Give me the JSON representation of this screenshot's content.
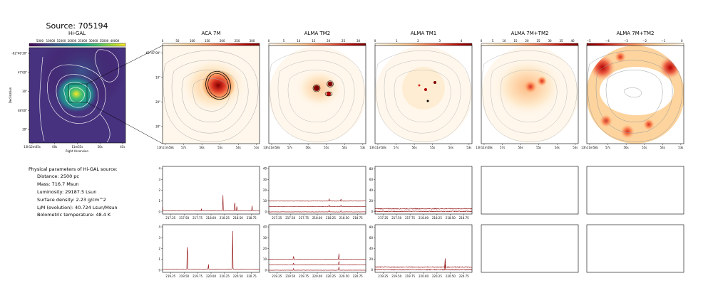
{
  "source_title": "Source: 705194",
  "params": {
    "heading": "Physical parameters of Hi-GAL source:",
    "lines": [
      "Distance: 2500 pc",
      "Mass: 716.7 Msun",
      "Luminosity: 29187.5 Lsun",
      "Surface density: 2.23 g/cm^2",
      "L/M (evolution): 40.724 Lsun/Msun",
      "Bolometric temperature: 48.4 K"
    ]
  },
  "colors": {
    "viridis": [
      "#440154",
      "#46327e",
      "#365c8d",
      "#277f8e",
      "#1fa187",
      "#4ac16d",
      "#a0da39",
      "#fde725"
    ],
    "orrd": [
      "#fff7ec",
      "#fee8c8",
      "#fdd49e",
      "#fdbb84",
      "#fc8d59",
      "#ef6548",
      "#d7301f",
      "#b30000",
      "#7f0000"
    ],
    "spectrum": "#8b0000"
  },
  "chart_data": [
    {
      "id": "higal",
      "type": "heatmap",
      "title": "Hi-GAL",
      "ylabel": "Declination",
      "xlabel": "Right Ascension",
      "colorbar_ticks": [
        "5000",
        "10000",
        "15000",
        "20000",
        "25000",
        "30000",
        "35000",
        "40000"
      ],
      "x_ticks": [
        "13h12m05s",
        "00s",
        "11m55s",
        "50s",
        "45s"
      ],
      "y_ticks": [
        "-62°46'30\"",
        "47'00\"",
        "30\"",
        "48'00\"",
        "30\""
      ]
    },
    {
      "id": "aca7m",
      "type": "heatmap",
      "title": "ACA 7M",
      "colorbar_ticks": [
        "0",
        "50",
        "100",
        "150",
        "200",
        "250",
        "300"
      ],
      "x_ticks": [
        "13h11m58s",
        "57s",
        "56s",
        "55s",
        "54s",
        "53s"
      ],
      "y_ticks": [
        "-62°47'00\"",
        "10\"",
        "20\"",
        "30\""
      ]
    },
    {
      "id": "tm2",
      "type": "heatmap",
      "title": "ALMA TM2",
      "colorbar_ticks": [
        "0",
        "5",
        "10",
        "15",
        "20",
        "25",
        "30"
      ],
      "x_ticks": [
        "13h11m58s",
        "57s",
        "56s",
        "55s",
        "54s",
        "53s"
      ]
    },
    {
      "id": "tm1",
      "type": "heatmap",
      "title": "ALMA TM1",
      "colorbar_ticks": [
        "0",
        "1",
        "2",
        "3",
        "4"
      ],
      "x_ticks": [
        "13h11m58s",
        "57s",
        "56s",
        "55s",
        "54s",
        "53s"
      ]
    },
    {
      "id": "7mtm2",
      "type": "heatmap",
      "title": "ALMA 7M+TM2",
      "colorbar_ticks": [
        "0",
        "5",
        "10",
        "15",
        "20",
        "25",
        "30",
        "35",
        "40"
      ],
      "x_ticks": [
        "13h11m58s",
        "57s",
        "56s",
        "55s",
        "54s",
        "53s"
      ]
    },
    {
      "id": "7mtm2b",
      "type": "heatmap",
      "title": "ALMA 7M+TM2",
      "colorbar_ticks": [
        "−5",
        "−4",
        "−3",
        "−2",
        "−1",
        "0"
      ],
      "x_ticks": [
        "13h11m58s",
        "57s",
        "56s",
        "55s",
        "54s",
        "53s"
      ]
    },
    {
      "id": "spec_aca_lo",
      "type": "line",
      "xlim": [
        217.1,
        218.9
      ],
      "ylim": [
        -0.2,
        4.2
      ],
      "x_ticks": [
        217.25,
        217.5,
        217.75,
        218.0,
        218.25,
        218.5,
        218.75
      ],
      "y_ticks": [
        0,
        1,
        2,
        3,
        4
      ],
      "baselines": [
        0.1
      ],
      "peaks": [
        [
          217.1,
          0.35
        ],
        [
          217.82,
          0.2
        ],
        [
          218.22,
          1.65
        ],
        [
          218.44,
          1.25
        ],
        [
          218.48,
          0.55
        ],
        [
          218.76,
          0.55
        ]
      ]
    },
    {
      "id": "spec_tm2_lo",
      "type": "line",
      "xlim": [
        217.1,
        218.9
      ],
      "ylim": [
        -2,
        42
      ],
      "x_ticks": [
        217.25,
        217.5,
        217.75,
        218.0,
        218.25,
        218.5,
        218.75
      ],
      "y_ticks": [
        0,
        10,
        20,
        30,
        40
      ],
      "baselines": [
        10,
        5,
        0
      ],
      "peaks": [
        [
          218.22,
          2.5
        ],
        [
          218.44,
          2.8
        ]
      ]
    },
    {
      "id": "spec_tm1_lo",
      "type": "line",
      "xlim": [
        217.1,
        218.9
      ],
      "ylim": [
        -5,
        85
      ],
      "x_ticks": [
        217.25,
        217.5,
        217.75,
        218.0,
        218.25,
        218.5,
        218.75
      ],
      "y_ticks": [
        0,
        20,
        40,
        60,
        80
      ],
      "baselines": [
        5,
        0
      ],
      "peaks": []
    },
    {
      "id": "spec_aca_hi",
      "type": "line",
      "xlim": [
        219.1,
        220.9
      ],
      "ylim": [
        -0.2,
        4.2
      ],
      "x_ticks": [
        219.25,
        219.5,
        219.75,
        220.0,
        220.25,
        220.5,
        220.75
      ],
      "y_ticks": [
        0,
        1,
        2,
        3,
        4
      ],
      "baselines": [
        0.1
      ],
      "peaks": [
        [
          219.56,
          3.4
        ],
        [
          219.95,
          0.5
        ],
        [
          220.4,
          4.0
        ]
      ]
    },
    {
      "id": "spec_tm2_hi",
      "type": "line",
      "xlim": [
        219.1,
        220.9
      ],
      "ylim": [
        -2,
        42
      ],
      "x_ticks": [
        219.25,
        219.5,
        219.75,
        220.0,
        220.25,
        220.5,
        220.75
      ],
      "y_ticks": [
        0,
        10,
        20,
        30,
        40
      ],
      "baselines": [
        10,
        5,
        0
      ],
      "peaks": [
        [
          219.56,
          4
        ],
        [
          220.4,
          6
        ]
      ]
    },
    {
      "id": "spec_tm1_hi",
      "type": "line",
      "xlim": [
        219.1,
        220.9
      ],
      "ylim": [
        -5,
        85
      ],
      "x_ticks": [
        219.25,
        219.5,
        219.75,
        220.0,
        220.25,
        220.5,
        220.75
      ],
      "y_ticks": [
        0,
        20,
        40,
        60,
        80
      ],
      "baselines": [
        5,
        0
      ],
      "peaks": [
        [
          220.4,
          18
        ]
      ]
    }
  ]
}
